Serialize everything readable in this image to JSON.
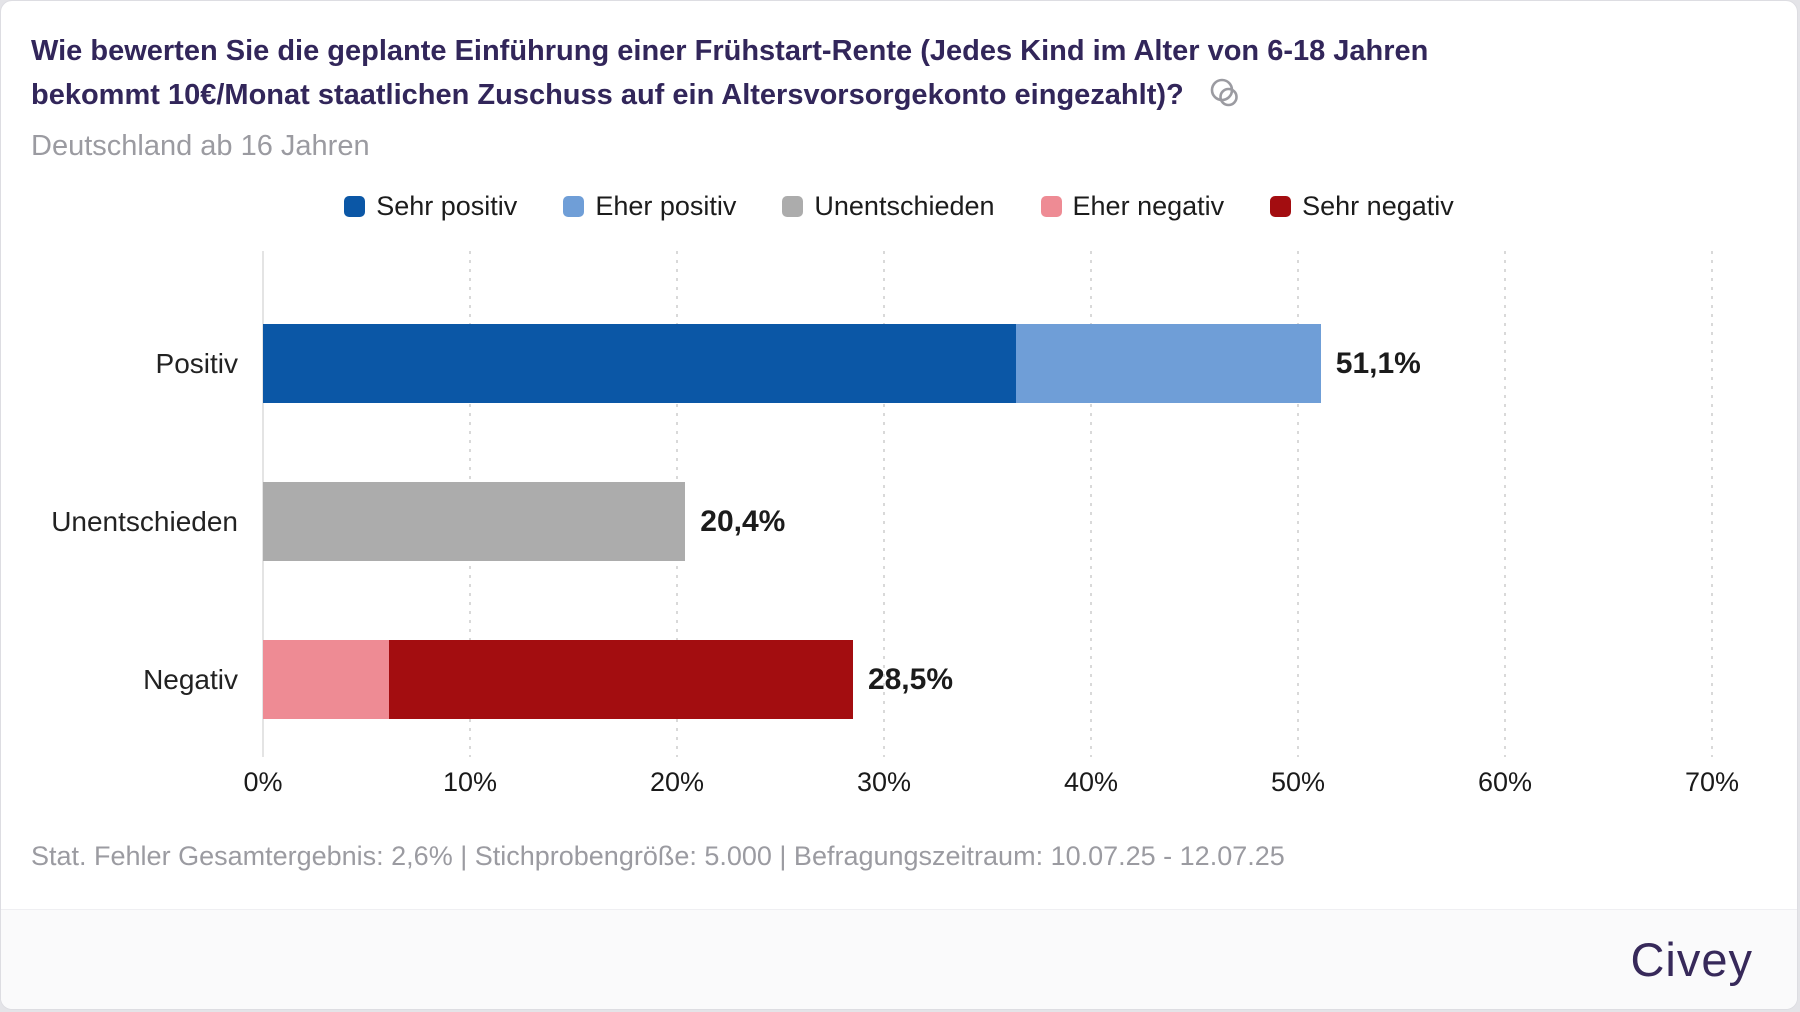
{
  "title": {
    "question": "Wie bewerten Sie die geplante Einführung einer Frühstart-Rente (Jedes Kind im Alter von 6-18 Jahren bekommt 10€/Monat staatlichen Zuschuss auf ein Altersvorsorgekonto eingezahlt)?",
    "audience": "Deutschland ab 16 Jahren"
  },
  "chart_data": {
    "type": "bar",
    "orientation": "horizontal",
    "stacked": true,
    "title": "Wie bewerten Sie die geplante Einführung einer Frühstart-Rente (Jedes Kind im Alter von 6-18 Jahren bekommt 10€/Monat staatlichen Zuschuss auf ein Altersvorsorgekonto eingezahlt)?",
    "categories": [
      "Positiv",
      "Unentschieden",
      "Negativ"
    ],
    "series": [
      {
        "name": "Sehr positiv",
        "color": "#0b57a6",
        "values": [
          36.4,
          0,
          0
        ]
      },
      {
        "name": "Eher positiv",
        "color": "#6f9ed7",
        "values": [
          14.7,
          0,
          0
        ]
      },
      {
        "name": "Unentschieden",
        "color": "#acacac",
        "values": [
          0,
          20.4,
          0
        ]
      },
      {
        "name": "Eher negativ",
        "color": "#ee8b94",
        "values": [
          0,
          0,
          6.1
        ]
      },
      {
        "name": "Sehr negativ",
        "color": "#a30d10",
        "values": [
          0,
          0,
          22.4
        ]
      }
    ],
    "total_labels": [
      "51,1%",
      "20,4%",
      "28,5%"
    ],
    "x_ticks": [
      {
        "value": 0,
        "label": "0%"
      },
      {
        "value": 10,
        "label": "10%"
      },
      {
        "value": 20,
        "label": "20%"
      },
      {
        "value": 30,
        "label": "30%"
      },
      {
        "value": 40,
        "label": "40%"
      },
      {
        "value": 50,
        "label": "50%"
      },
      {
        "value": 60,
        "label": "60%"
      },
      {
        "value": 70,
        "label": "70%"
      }
    ],
    "xlim": [
      0,
      70
    ],
    "grid": "vertical-dotted",
    "legend_position": "top"
  },
  "footer": {
    "source": "Stat. Fehler Gesamtergebnis: 2,6% | Stichprobengröße: 5.000 | Befragungszeitraum: 10.07.25 - 12.07.25",
    "brand": "Civey"
  }
}
